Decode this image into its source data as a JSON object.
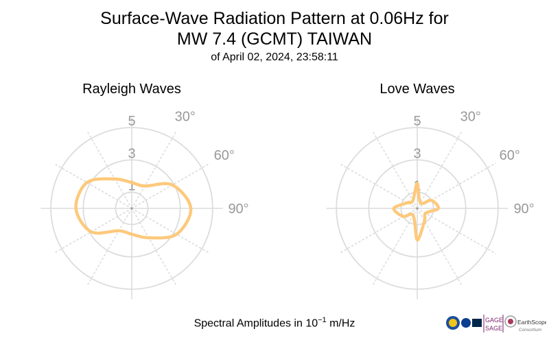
{
  "header": {
    "title_line1": "Surface-Wave Radiation Pattern at 0.06Hz for",
    "title_line2": "MW 7.4 (GCMT) TAIWAN",
    "subtitle": "of April 02, 2024, 23:58:11"
  },
  "footer": {
    "label_prefix": "Spectral Amplitudes in ",
    "label_base": "10",
    "label_exponent": "−1",
    "label_unit": " m/Hz"
  },
  "logos": {
    "gage": "GAGE",
    "sage": "SAGE",
    "earthscope": "EarthScope",
    "consortium": "Consortium"
  },
  "colors": {
    "pattern": "#fdc97c",
    "grid": "#dcdcdc",
    "tick_labels": "#999999"
  },
  "chart_data": [
    {
      "type": "polar-line",
      "title": "Rayleigh Waves",
      "radial_ticks": [
        "1",
        "3",
        "5"
      ],
      "radial_tick_values": [
        1,
        3,
        5
      ],
      "rlim": [
        0,
        5.6
      ],
      "angle_ticks": [
        "30°",
        "60°",
        "90°"
      ],
      "angle_tick_values": [
        30,
        60,
        90
      ],
      "grid": true,
      "series": [
        {
          "azimuth_deg": [
            0,
            30,
            60,
            90,
            120,
            150,
            180,
            210,
            240,
            270,
            300,
            330
          ],
          "amplitude": [
            1.6,
            1.6,
            2.9,
            3.65,
            3.2,
            2.1,
            1.6,
            1.6,
            2.9,
            3.45,
            3.2,
            2.1
          ]
        }
      ]
    },
    {
      "type": "polar-line",
      "title": "Love Waves",
      "radial_ticks": [
        "1",
        "3",
        "5"
      ],
      "radial_tick_values": [
        1,
        3,
        5
      ],
      "rlim": [
        0,
        5.6
      ],
      "angle_ticks": [
        "30°",
        "60°",
        "90°"
      ],
      "angle_tick_values": [
        30,
        60,
        90
      ],
      "grid": true,
      "series": [
        {
          "azimuth_deg": [
            0,
            30,
            60,
            90,
            120,
            150,
            180,
            210,
            240,
            270,
            300,
            330
          ],
          "amplitude": [
            1.55,
            0.4,
            1.0,
            1.3,
            0.6,
            0.9,
            1.95,
            0.5,
            1.0,
            1.45,
            0.7,
            0.55
          ]
        }
      ]
    }
  ]
}
